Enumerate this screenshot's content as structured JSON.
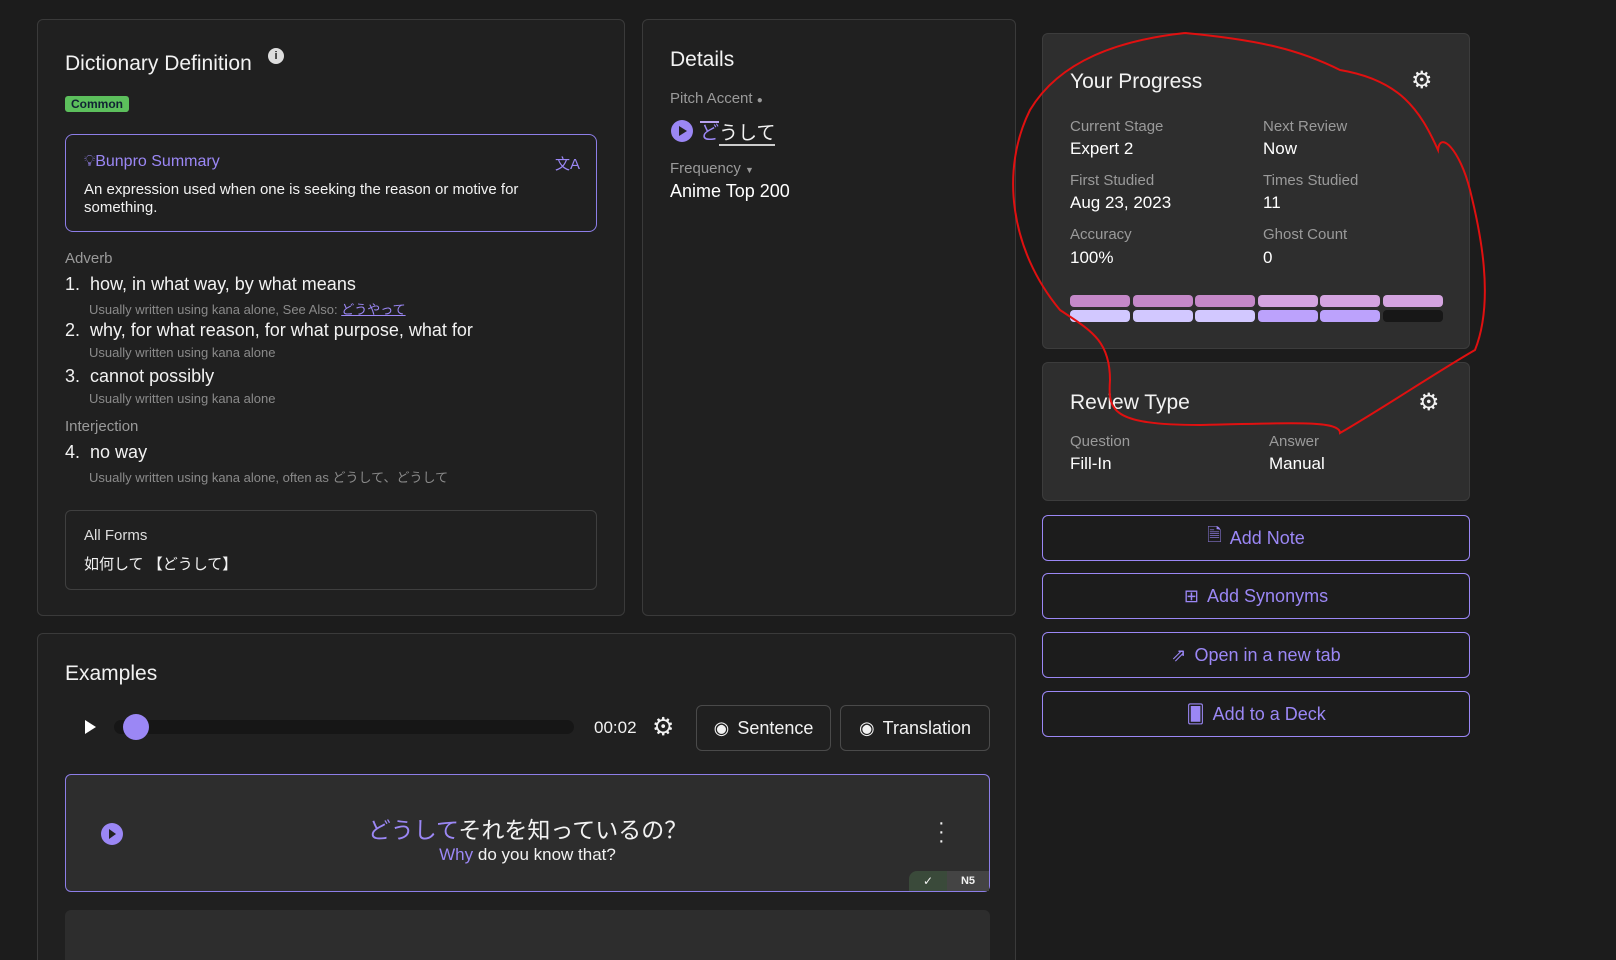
{
  "definition": {
    "title": "Dictionary Definition",
    "badge": "Common",
    "summary_title": "Bunpro Summary",
    "summary_text": "An expression used when one is seeking the reason or motive for something.",
    "groups": [
      {
        "pos": "Adverb"
      },
      {
        "pos": "Interjection"
      }
    ],
    "senses": [
      {
        "num": "1.",
        "text": "how, in what way, by what means",
        "note": "Usually written using kana alone, See Also:",
        "link": "どうやって"
      },
      {
        "num": "2.",
        "text": "why, for what reason, for what purpose, what for",
        "note": "Usually written using kana alone"
      },
      {
        "num": "3.",
        "text": "cannot possibly",
        "note": "Usually written using kana alone"
      },
      {
        "num": "4.",
        "text": "no way",
        "note": "Usually written using kana alone, often as どうして、どうして"
      }
    ],
    "all_forms_label": "All Forms",
    "all_forms": "如何して 【どうして】"
  },
  "details": {
    "title": "Details",
    "pitch_label": "Pitch Accent",
    "pitch_high": "ど",
    "pitch_low": "うして",
    "freq_label": "Frequency",
    "freq_value": "Anime Top 200"
  },
  "progress": {
    "title": "Your Progress",
    "stats": [
      {
        "label": "Current Stage",
        "value": "Expert 2"
      },
      {
        "label": "Next Review",
        "value": "Now"
      },
      {
        "label": "First Studied",
        "value": "Aug 23, 2023"
      },
      {
        "label": "Times Studied",
        "value": "11"
      },
      {
        "label": "Accuracy",
        "value": "100%"
      },
      {
        "label": "Ghost Count",
        "value": "0"
      }
    ],
    "stage_fill": "11 of 12 segments",
    "colors": {
      "top": "#c488c8",
      "top_light": "#d4a4e0",
      "bottom_light": "#d2c8ff",
      "bottom": "#bca2fc",
      "empty": "#171717"
    }
  },
  "review": {
    "title": "Review Type",
    "question_label": "Question",
    "question": "Fill-In",
    "answer_label": "Answer",
    "answer": "Manual"
  },
  "actions": {
    "add_note": "Add Note",
    "add_synonyms": "Add Synonyms",
    "open_tab": "Open in a new tab",
    "add_deck": "Add to a Deck"
  },
  "examples": {
    "title": "Examples",
    "time": "00:02",
    "sentence_btn": "Sentence",
    "translation_btn": "Translation",
    "progress": 0.02,
    "items": [
      {
        "jp_highlight": "どうして",
        "jp_rest": "それを知っているの？",
        "en_highlight": "Why",
        "en_rest": " do you know that?",
        "level": "N5"
      }
    ]
  },
  "accent": "#9b87f5"
}
